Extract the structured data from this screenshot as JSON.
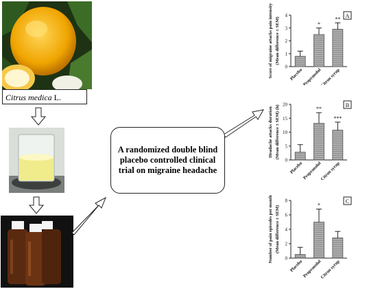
{
  "caption": {
    "genus_species": "Citrus medica",
    "authority": "L."
  },
  "trial_text": "A randomized double blind placebo controlled clinical trial on migraine headache",
  "chart_data": [
    {
      "type": "bar",
      "panel_label": "A",
      "categories": [
        "Placebo",
        "Propranolol",
        "Citron syrup"
      ],
      "values": [
        0.8,
        2.5,
        2.9
      ],
      "errors": [
        0.4,
        0.5,
        0.5
      ],
      "significance": [
        "",
        "*",
        "**"
      ],
      "ylabel": "Score of migraine attacks pain intensity (Mean difference ± SEM)",
      "ylim": [
        0,
        4
      ],
      "yticks": [
        0,
        1,
        2,
        3,
        4
      ]
    },
    {
      "type": "bar",
      "panel_label": "B",
      "categories": [
        "Placebo",
        "Propranolol",
        "Citron syrup"
      ],
      "values": [
        2.8,
        13.2,
        10.7
      ],
      "errors": [
        2.7,
        3.8,
        2.9
      ],
      "significance": [
        "",
        "**",
        "***"
      ],
      "ylabel": "Headache attacks duration (Mean difference ± SEM) (h)",
      "ylim": [
        0,
        20
      ],
      "yticks": [
        0,
        5,
        10,
        15,
        20
      ]
    },
    {
      "type": "bar",
      "panel_label": "C",
      "categories": [
        "Placebo",
        "Propranolol",
        "Citron syrup"
      ],
      "values": [
        0.5,
        5.0,
        2.8
      ],
      "errors": [
        1.0,
        1.8,
        0.9
      ],
      "significance": [
        "",
        "*",
        ""
      ],
      "ylabel": "Number of pain episodes per month (Mean difference ± SEM)",
      "ylim": [
        0,
        8
      ],
      "yticks": [
        0,
        2,
        4,
        6,
        8
      ]
    }
  ]
}
